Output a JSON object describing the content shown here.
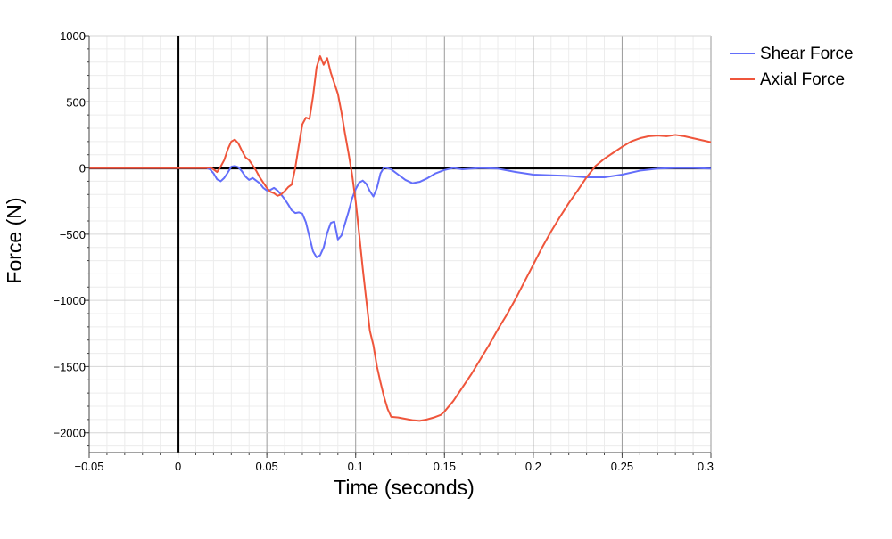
{
  "chart_data": {
    "type": "line",
    "title": "",
    "xlabel": "Time (seconds)",
    "ylabel": "Force (N)",
    "xlim": [
      -0.05,
      0.3
    ],
    "ylim": [
      -2150,
      1000
    ],
    "xticks": [
      -0.05,
      0,
      0.05,
      0.1,
      0.15,
      0.2,
      0.25,
      0.3
    ],
    "xtick_labels": [
      "−0.05",
      "0",
      "0.05",
      "0.1",
      "0.15",
      "0.2",
      "0.25",
      "0.3"
    ],
    "yticks": [
      -2000,
      -1500,
      -1000,
      -500,
      0,
      500,
      1000
    ],
    "ytick_labels": [
      "−2000",
      "−1500",
      "−1000",
      "−500",
      "0",
      "500",
      "1000"
    ],
    "grid": true,
    "minor_grid": true,
    "zero_lines": true,
    "legend": {
      "placement": "top-right-outside"
    },
    "series": [
      {
        "name": "Shear Force",
        "color": "#636efa",
        "points": [
          [
            -0.05,
            0
          ],
          [
            0.016,
            0
          ],
          [
            0.018,
            -10
          ],
          [
            0.02,
            -40
          ],
          [
            0.022,
            -85
          ],
          [
            0.024,
            -100
          ],
          [
            0.026,
            -75
          ],
          [
            0.028,
            -35
          ],
          [
            0.03,
            10
          ],
          [
            0.032,
            15
          ],
          [
            0.034,
            5
          ],
          [
            0.036,
            -25
          ],
          [
            0.038,
            -65
          ],
          [
            0.04,
            -90
          ],
          [
            0.042,
            -75
          ],
          [
            0.044,
            -95
          ],
          [
            0.046,
            -115
          ],
          [
            0.048,
            -150
          ],
          [
            0.05,
            -170
          ],
          [
            0.052,
            -165
          ],
          [
            0.054,
            -150
          ],
          [
            0.056,
            -170
          ],
          [
            0.058,
            -200
          ],
          [
            0.06,
            -235
          ],
          [
            0.062,
            -275
          ],
          [
            0.064,
            -320
          ],
          [
            0.066,
            -340
          ],
          [
            0.068,
            -335
          ],
          [
            0.07,
            -345
          ],
          [
            0.072,
            -410
          ],
          [
            0.074,
            -520
          ],
          [
            0.076,
            -630
          ],
          [
            0.078,
            -675
          ],
          [
            0.08,
            -660
          ],
          [
            0.082,
            -600
          ],
          [
            0.084,
            -490
          ],
          [
            0.086,
            -415
          ],
          [
            0.088,
            -405
          ],
          [
            0.09,
            -540
          ],
          [
            0.092,
            -510
          ],
          [
            0.094,
            -420
          ],
          [
            0.096,
            -330
          ],
          [
            0.098,
            -230
          ],
          [
            0.1,
            -160
          ],
          [
            0.102,
            -110
          ],
          [
            0.104,
            -95
          ],
          [
            0.106,
            -120
          ],
          [
            0.108,
            -175
          ],
          [
            0.11,
            -215
          ],
          [
            0.112,
            -150
          ],
          [
            0.114,
            -40
          ],
          [
            0.116,
            5
          ],
          [
            0.12,
            -10
          ],
          [
            0.124,
            -50
          ],
          [
            0.128,
            -90
          ],
          [
            0.132,
            -115
          ],
          [
            0.136,
            -105
          ],
          [
            0.14,
            -80
          ],
          [
            0.145,
            -40
          ],
          [
            0.15,
            -15
          ],
          [
            0.155,
            0
          ],
          [
            0.16,
            -10
          ],
          [
            0.17,
            0
          ],
          [
            0.18,
            -5
          ],
          [
            0.19,
            -30
          ],
          [
            0.2,
            -50
          ],
          [
            0.21,
            -55
          ],
          [
            0.22,
            -60
          ],
          [
            0.23,
            -70
          ],
          [
            0.24,
            -70
          ],
          [
            0.25,
            -50
          ],
          [
            0.26,
            -20
          ],
          [
            0.27,
            -5
          ],
          [
            0.28,
            0
          ],
          [
            0.29,
            0
          ],
          [
            0.3,
            -5
          ]
        ]
      },
      {
        "name": "Axial Force",
        "color": "#ef553b",
        "points": [
          [
            -0.05,
            0
          ],
          [
            0.016,
            0
          ],
          [
            0.018,
            5
          ],
          [
            0.02,
            -10
          ],
          [
            0.022,
            -30
          ],
          [
            0.024,
            10
          ],
          [
            0.026,
            60
          ],
          [
            0.028,
            140
          ],
          [
            0.03,
            200
          ],
          [
            0.032,
            215
          ],
          [
            0.034,
            185
          ],
          [
            0.036,
            130
          ],
          [
            0.038,
            80
          ],
          [
            0.04,
            60
          ],
          [
            0.042,
            20
          ],
          [
            0.044,
            -20
          ],
          [
            0.046,
            -70
          ],
          [
            0.048,
            -110
          ],
          [
            0.05,
            -150
          ],
          [
            0.052,
            -180
          ],
          [
            0.054,
            -190
          ],
          [
            0.056,
            -210
          ],
          [
            0.058,
            -200
          ],
          [
            0.06,
            -175
          ],
          [
            0.062,
            -145
          ],
          [
            0.064,
            -125
          ],
          [
            0.066,
            0
          ],
          [
            0.068,
            170
          ],
          [
            0.07,
            330
          ],
          [
            0.072,
            380
          ],
          [
            0.074,
            370
          ],
          [
            0.076,
            540
          ],
          [
            0.078,
            760
          ],
          [
            0.08,
            845
          ],
          [
            0.082,
            780
          ],
          [
            0.084,
            830
          ],
          [
            0.086,
            720
          ],
          [
            0.088,
            640
          ],
          [
            0.09,
            560
          ],
          [
            0.092,
            420
          ],
          [
            0.094,
            260
          ],
          [
            0.096,
            110
          ],
          [
            0.098,
            -50
          ],
          [
            0.1,
            -250
          ],
          [
            0.102,
            -500
          ],
          [
            0.104,
            -760
          ],
          [
            0.106,
            -1000
          ],
          [
            0.108,
            -1230
          ],
          [
            0.11,
            -1340
          ],
          [
            0.112,
            -1500
          ],
          [
            0.114,
            -1620
          ],
          [
            0.116,
            -1730
          ],
          [
            0.118,
            -1820
          ],
          [
            0.12,
            -1880
          ],
          [
            0.124,
            -1885
          ],
          [
            0.128,
            -1895
          ],
          [
            0.132,
            -1905
          ],
          [
            0.136,
            -1910
          ],
          [
            0.14,
            -1900
          ],
          [
            0.144,
            -1885
          ],
          [
            0.148,
            -1865
          ],
          [
            0.15,
            -1840
          ],
          [
            0.155,
            -1760
          ],
          [
            0.16,
            -1660
          ],
          [
            0.165,
            -1560
          ],
          [
            0.17,
            -1450
          ],
          [
            0.175,
            -1340
          ],
          [
            0.18,
            -1220
          ],
          [
            0.185,
            -1110
          ],
          [
            0.19,
            -990
          ],
          [
            0.195,
            -860
          ],
          [
            0.2,
            -730
          ],
          [
            0.205,
            -600
          ],
          [
            0.21,
            -480
          ],
          [
            0.215,
            -370
          ],
          [
            0.22,
            -265
          ],
          [
            0.225,
            -170
          ],
          [
            0.23,
            -70
          ],
          [
            0.235,
            15
          ],
          [
            0.24,
            70
          ],
          [
            0.245,
            115
          ],
          [
            0.25,
            160
          ],
          [
            0.255,
            200
          ],
          [
            0.26,
            225
          ],
          [
            0.265,
            240
          ],
          [
            0.27,
            245
          ],
          [
            0.275,
            240
          ],
          [
            0.28,
            250
          ],
          [
            0.285,
            240
          ],
          [
            0.29,
            225
          ],
          [
            0.295,
            210
          ],
          [
            0.3,
            195
          ]
        ]
      }
    ]
  }
}
